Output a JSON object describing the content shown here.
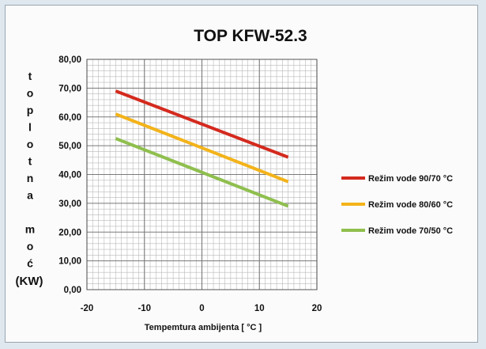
{
  "chart_data": {
    "type": "line",
    "title": "TOP KFW-52.3",
    "xlabel": "Tempemtura ambijenta  [ °C ]",
    "ylabel_chars": [
      "t",
      "o",
      "p",
      "l",
      "o",
      "t",
      "n",
      "a",
      "",
      "m",
      "o",
      "ć"
    ],
    "ylabel_unit": "(KW)",
    "xlim": [
      -20,
      20
    ],
    "ylim": [
      0,
      80
    ],
    "x_ticks": [
      -20,
      -10,
      0,
      10,
      20
    ],
    "x_tick_labels": [
      "-20",
      "-10",
      "0",
      "10",
      "20"
    ],
    "y_ticks": [
      0,
      10,
      20,
      30,
      40,
      50,
      60,
      70,
      80
    ],
    "y_tick_labels": [
      "0,00",
      "10,00",
      "20,00",
      "30,00",
      "40,00",
      "50,00",
      "60,00",
      "70,00",
      "80,00"
    ],
    "grid": true,
    "legend_position": "right",
    "series": [
      {
        "name": "Režim vode 90/70  °C",
        "color": "#d42a1e",
        "x": [
          -15,
          15
        ],
        "y": [
          69,
          46
        ]
      },
      {
        "name": "Režim vode 80/60  °C",
        "color": "#f3b31a",
        "x": [
          -15,
          15
        ],
        "y": [
          61,
          37.5
        ]
      },
      {
        "name": "Režim vode 70/50  °C",
        "color": "#8fbf4e",
        "x": [
          -15,
          15
        ],
        "y": [
          52.5,
          29
        ]
      }
    ]
  }
}
